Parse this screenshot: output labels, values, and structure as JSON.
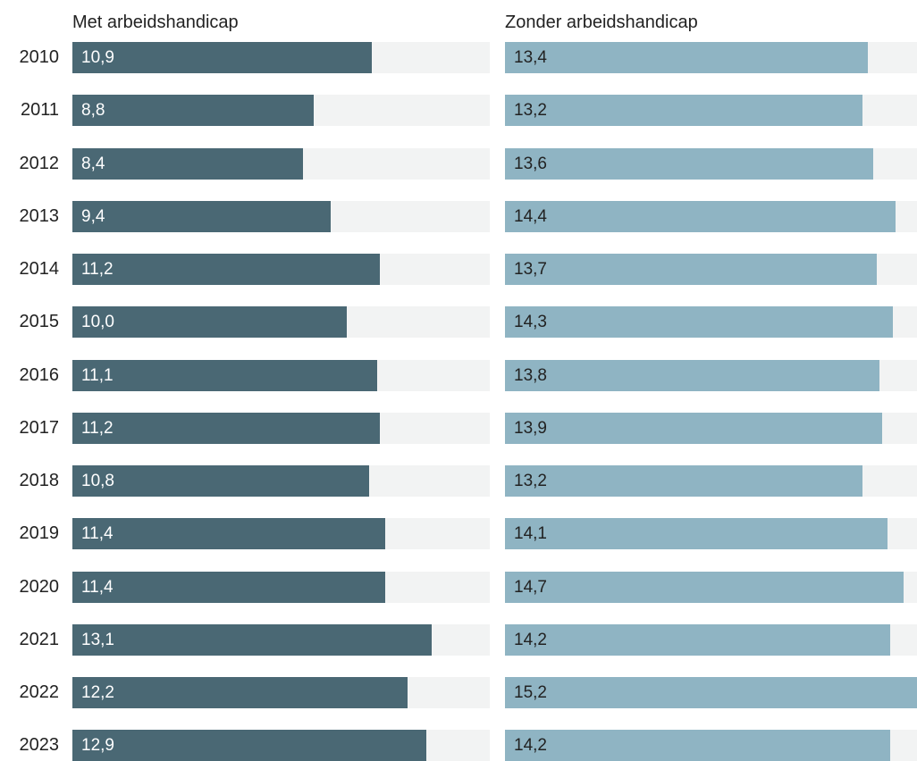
{
  "chart_data": {
    "type": "bar",
    "orientation": "horizontal",
    "layout": "small-multiples",
    "categories": [
      "2010",
      "2011",
      "2012",
      "2013",
      "2014",
      "2015",
      "2016",
      "2017",
      "2018",
      "2019",
      "2020",
      "2021",
      "2022",
      "2023"
    ],
    "series": [
      {
        "name": "Met arbeidshandicap",
        "color": "#4a6874",
        "values": [
          10.9,
          8.8,
          8.4,
          9.4,
          11.2,
          10.0,
          11.1,
          11.2,
          10.8,
          11.4,
          11.4,
          13.1,
          12.2,
          12.9
        ],
        "labels": [
          "10,9",
          "8,8",
          "8,4",
          "9,4",
          "11,2",
          "10,0",
          "11,1",
          "11,2",
          "10,8",
          "11,4",
          "11,4",
          "13,1",
          "12,2",
          "12,9"
        ]
      },
      {
        "name": "Zonder arbeidshandicap",
        "color": "#8fb4c3",
        "values": [
          13.4,
          13.2,
          13.6,
          14.4,
          13.7,
          14.3,
          13.8,
          13.9,
          13.2,
          14.1,
          14.7,
          14.2,
          15.2,
          14.2
        ],
        "labels": [
          "13,4",
          "13,2",
          "13,6",
          "14,4",
          "13,7",
          "14,3",
          "13,8",
          "13,9",
          "13,2",
          "14,1",
          "14,7",
          "14,2",
          "15,2",
          "14,2"
        ]
      }
    ],
    "xlim": [
      0,
      15.2
    ],
    "track_color": "#f2f3f3",
    "grid": false
  }
}
